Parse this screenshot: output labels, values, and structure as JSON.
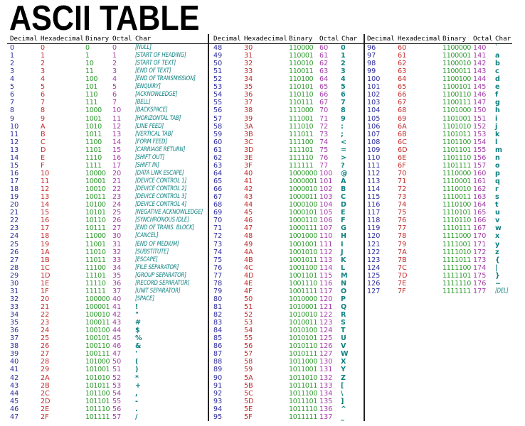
{
  "title": "ASCII TABLE",
  "headers": [
    "Decimal",
    "Hexadecimal",
    "Binary",
    "Octal",
    "Char"
  ],
  "colors": {
    "decimal": "#2b2b9b",
    "hexadecimal": "#c42a2a",
    "binary": "#2e9a2e",
    "octal": "#a23aa6",
    "char": "#0f8080"
  },
  "tables": [
    {
      "rows": [
        [
          "0",
          "0",
          "0",
          "0",
          "[NULL]"
        ],
        [
          "1",
          "1",
          "1",
          "1",
          "[START OF HEADING]"
        ],
        [
          "2",
          "2",
          "10",
          "2",
          "[START OF TEXT]"
        ],
        [
          "3",
          "3",
          "11",
          "3",
          "[END OF TEXT]"
        ],
        [
          "4",
          "4",
          "100",
          "4",
          "[END OF TRANSMISSION]"
        ],
        [
          "5",
          "5",
          "101",
          "5",
          "[ENQUIRY]"
        ],
        [
          "6",
          "6",
          "110",
          "6",
          "[ACKNOWLEDGE]"
        ],
        [
          "7",
          "7",
          "111",
          "7",
          "[BELL]"
        ],
        [
          "8",
          "8",
          "1000",
          "10",
          "[BACKSPACE]"
        ],
        [
          "9",
          "9",
          "1001",
          "11",
          "[HORIZONTAL TAB]"
        ],
        [
          "10",
          "A",
          "1010",
          "12",
          "[LINE FEED]"
        ],
        [
          "11",
          "B",
          "1011",
          "13",
          "[VERTICAL TAB]"
        ],
        [
          "12",
          "C",
          "1100",
          "14",
          "[FORM FEED]"
        ],
        [
          "13",
          "D",
          "1101",
          "15",
          "[CARRIAGE RETURN]"
        ],
        [
          "14",
          "E",
          "1110",
          "16",
          "[SHIFT OUT]"
        ],
        [
          "15",
          "F",
          "1111",
          "17",
          "[SHIFT IN]"
        ],
        [
          "16",
          "10",
          "10000",
          "20",
          "[DATA LINK ESCAPE]"
        ],
        [
          "17",
          "11",
          "10001",
          "21",
          "[DEVICE CONTROL 1]"
        ],
        [
          "18",
          "12",
          "10010",
          "22",
          "[DEVICE CONTROL 2]"
        ],
        [
          "19",
          "13",
          "10011",
          "23",
          "[DEVICE CONTROL 3]"
        ],
        [
          "20",
          "14",
          "10100",
          "24",
          "[DEVICE CONTROL 4]"
        ],
        [
          "21",
          "15",
          "10101",
          "25",
          "[NEGATIVE ACKNOWLEDGE]"
        ],
        [
          "22",
          "16",
          "10110",
          "26",
          "[SYNCHRONOUS IDLE]"
        ],
        [
          "23",
          "17",
          "10111",
          "27",
          "[END OF TRANS. BLOCK]"
        ],
        [
          "24",
          "18",
          "11000",
          "30",
          "[CANCEL]"
        ],
        [
          "25",
          "19",
          "11001",
          "31",
          "[END OF MEDIUM]"
        ],
        [
          "26",
          "1A",
          "11010",
          "32",
          "[SUBSTITUTE]"
        ],
        [
          "27",
          "1B",
          "11011",
          "33",
          "[ESCAPE]"
        ],
        [
          "28",
          "1C",
          "11100",
          "34",
          "[FILE SEPARATOR]"
        ],
        [
          "29",
          "1D",
          "11101",
          "35",
          "[GROUP SEPARATOR]"
        ],
        [
          "30",
          "1E",
          "11110",
          "36",
          "[RECORD SEPARATOR]"
        ],
        [
          "31",
          "1F",
          "11111",
          "37",
          "[UNIT SEPARATOR]"
        ],
        [
          "32",
          "20",
          "100000",
          "40",
          "[SPACE]"
        ],
        [
          "33",
          "21",
          "100001",
          "41",
          "!"
        ],
        [
          "34",
          "22",
          "100010",
          "42",
          "\""
        ],
        [
          "35",
          "23",
          "100011",
          "43",
          "#"
        ],
        [
          "36",
          "24",
          "100100",
          "44",
          "$"
        ],
        [
          "37",
          "25",
          "100101",
          "45",
          "%"
        ],
        [
          "38",
          "26",
          "100110",
          "46",
          "&"
        ],
        [
          "39",
          "27",
          "100111",
          "47",
          "'"
        ],
        [
          "40",
          "28",
          "101000",
          "50",
          "("
        ],
        [
          "41",
          "29",
          "101001",
          "51",
          ")"
        ],
        [
          "42",
          "2A",
          "101010",
          "52",
          "*"
        ],
        [
          "43",
          "2B",
          "101011",
          "53",
          "+"
        ],
        [
          "44",
          "2C",
          "101100",
          "54",
          ","
        ],
        [
          "45",
          "2D",
          "101101",
          "55",
          "-"
        ],
        [
          "46",
          "2E",
          "101110",
          "56",
          "."
        ],
        [
          "47",
          "2F",
          "101111",
          "57",
          "/"
        ]
      ]
    },
    {
      "rows": [
        [
          "48",
          "30",
          "110000",
          "60",
          "0"
        ],
        [
          "49",
          "31",
          "110001",
          "61",
          "1"
        ],
        [
          "50",
          "32",
          "110010",
          "62",
          "2"
        ],
        [
          "51",
          "33",
          "110011",
          "63",
          "3"
        ],
        [
          "52",
          "34",
          "110100",
          "64",
          "4"
        ],
        [
          "53",
          "35",
          "110101",
          "65",
          "5"
        ],
        [
          "54",
          "36",
          "110110",
          "66",
          "6"
        ],
        [
          "55",
          "37",
          "110111",
          "67",
          "7"
        ],
        [
          "56",
          "38",
          "111000",
          "70",
          "8"
        ],
        [
          "57",
          "39",
          "111001",
          "71",
          "9"
        ],
        [
          "58",
          "3A",
          "111010",
          "72",
          ":"
        ],
        [
          "59",
          "3B",
          "111011",
          "73",
          ";"
        ],
        [
          "60",
          "3C",
          "111100",
          "74",
          "<"
        ],
        [
          "61",
          "3D",
          "111101",
          "75",
          "="
        ],
        [
          "62",
          "3E",
          "111110",
          "76",
          ">"
        ],
        [
          "63",
          "3F",
          "111111",
          "77",
          "?"
        ],
        [
          "64",
          "40",
          "1000000",
          "100",
          "@"
        ],
        [
          "65",
          "41",
          "1000001",
          "101",
          "A"
        ],
        [
          "66",
          "42",
          "1000010",
          "102",
          "B"
        ],
        [
          "67",
          "43",
          "1000011",
          "103",
          "C"
        ],
        [
          "68",
          "44",
          "1000100",
          "104",
          "D"
        ],
        [
          "69",
          "45",
          "1000101",
          "105",
          "E"
        ],
        [
          "70",
          "46",
          "1000110",
          "106",
          "F"
        ],
        [
          "71",
          "47",
          "1000111",
          "107",
          "G"
        ],
        [
          "72",
          "48",
          "1001000",
          "110",
          "H"
        ],
        [
          "73",
          "49",
          "1001001",
          "111",
          "I"
        ],
        [
          "74",
          "4A",
          "1001010",
          "112",
          "J"
        ],
        [
          "75",
          "4B",
          "1001011",
          "113",
          "K"
        ],
        [
          "76",
          "4C",
          "1001100",
          "114",
          "L"
        ],
        [
          "77",
          "4D",
          "1001101",
          "115",
          "M"
        ],
        [
          "78",
          "4E",
          "1001110",
          "116",
          "N"
        ],
        [
          "79",
          "4F",
          "1001111",
          "117",
          "O"
        ],
        [
          "80",
          "50",
          "1010000",
          "120",
          "P"
        ],
        [
          "81",
          "51",
          "1010001",
          "121",
          "Q"
        ],
        [
          "82",
          "52",
          "1010010",
          "122",
          "R"
        ],
        [
          "83",
          "53",
          "1010011",
          "123",
          "S"
        ],
        [
          "84",
          "54",
          "1010100",
          "124",
          "T"
        ],
        [
          "85",
          "55",
          "1010101",
          "125",
          "U"
        ],
        [
          "86",
          "56",
          "1010110",
          "126",
          "V"
        ],
        [
          "87",
          "57",
          "1010111",
          "127",
          "W"
        ],
        [
          "88",
          "58",
          "1011000",
          "130",
          "X"
        ],
        [
          "89",
          "59",
          "1011001",
          "131",
          "Y"
        ],
        [
          "90",
          "5A",
          "1011010",
          "132",
          "Z"
        ],
        [
          "91",
          "5B",
          "1011011",
          "133",
          "["
        ],
        [
          "92",
          "5C",
          "1011100",
          "134",
          "\\"
        ],
        [
          "93",
          "5D",
          "1011101",
          "135",
          "]"
        ],
        [
          "94",
          "5E",
          "1011110",
          "136",
          "^"
        ],
        [
          "95",
          "5F",
          "1011111",
          "137",
          "_"
        ]
      ]
    },
    {
      "rows": [
        [
          "96",
          "60",
          "1100000",
          "140",
          "`"
        ],
        [
          "97",
          "61",
          "1100001",
          "141",
          "a"
        ],
        [
          "98",
          "62",
          "1100010",
          "142",
          "b"
        ],
        [
          "99",
          "63",
          "1100011",
          "143",
          "c"
        ],
        [
          "100",
          "64",
          "1100100",
          "144",
          "d"
        ],
        [
          "101",
          "65",
          "1100101",
          "145",
          "e"
        ],
        [
          "102",
          "66",
          "1100110",
          "146",
          "f"
        ],
        [
          "103",
          "67",
          "1100111",
          "147",
          "g"
        ],
        [
          "104",
          "68",
          "1101000",
          "150",
          "h"
        ],
        [
          "105",
          "69",
          "1101001",
          "151",
          "i"
        ],
        [
          "106",
          "6A",
          "1101010",
          "152",
          "j"
        ],
        [
          "107",
          "6B",
          "1101011",
          "153",
          "k"
        ],
        [
          "108",
          "6C",
          "1101100",
          "154",
          "l"
        ],
        [
          "109",
          "6D",
          "1101101",
          "155",
          "m"
        ],
        [
          "110",
          "6E",
          "1101110",
          "156",
          "n"
        ],
        [
          "111",
          "6F",
          "1101111",
          "157",
          "o"
        ],
        [
          "112",
          "70",
          "1110000",
          "160",
          "p"
        ],
        [
          "113",
          "71",
          "1110001",
          "161",
          "q"
        ],
        [
          "114",
          "72",
          "1110010",
          "162",
          "r"
        ],
        [
          "115",
          "73",
          "1110011",
          "163",
          "s"
        ],
        [
          "116",
          "74",
          "1110100",
          "164",
          "t"
        ],
        [
          "117",
          "75",
          "1110101",
          "165",
          "u"
        ],
        [
          "118",
          "76",
          "1110110",
          "166",
          "v"
        ],
        [
          "119",
          "77",
          "1110111",
          "167",
          "w"
        ],
        [
          "120",
          "78",
          "1111000",
          "170",
          "x"
        ],
        [
          "121",
          "79",
          "1111001",
          "171",
          "y"
        ],
        [
          "122",
          "7A",
          "1111010",
          "172",
          "z"
        ],
        [
          "123",
          "7B",
          "1111011",
          "173",
          "{"
        ],
        [
          "124",
          "7C",
          "1111100",
          "174",
          "|"
        ],
        [
          "125",
          "7D",
          "1111101",
          "175",
          "}"
        ],
        [
          "126",
          "7E",
          "1111110",
          "176",
          "~"
        ],
        [
          "127",
          "7F",
          "1111111",
          "177",
          "[DEL]"
        ]
      ]
    }
  ]
}
